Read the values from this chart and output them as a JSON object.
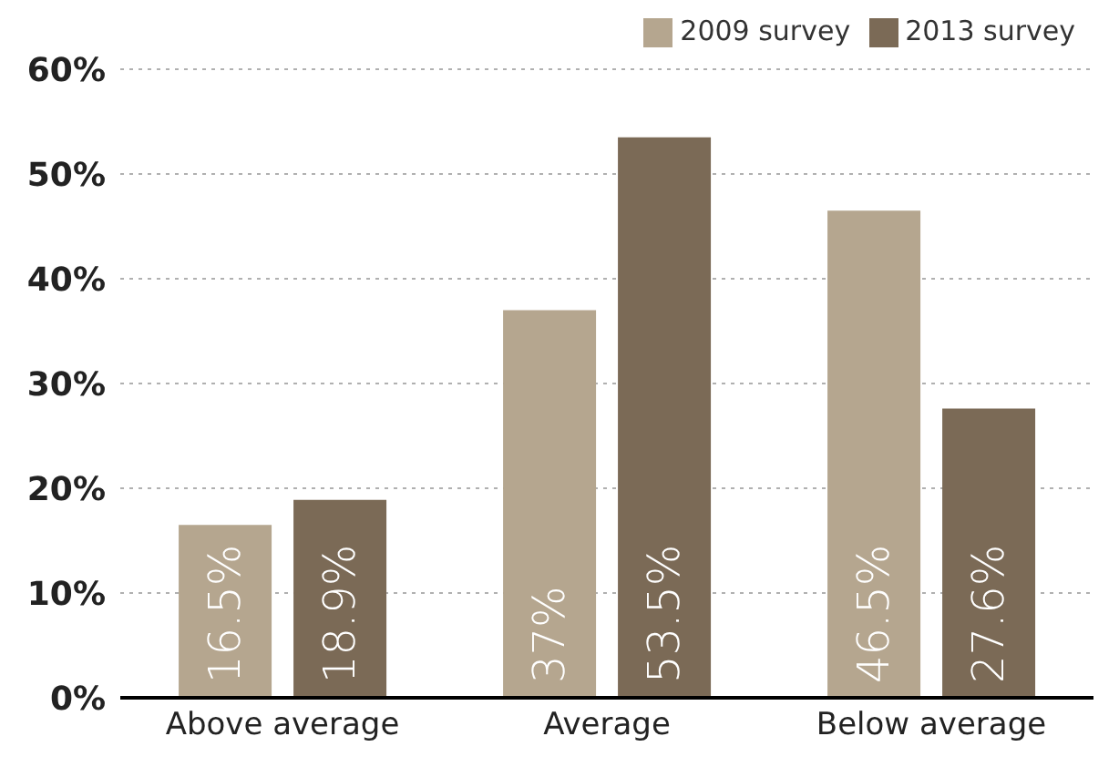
{
  "chart_data": {
    "type": "bar",
    "categories": [
      "Above average",
      "Average",
      "Below average"
    ],
    "series": [
      {
        "name": "2009 survey",
        "color": "#b5a68f",
        "values": [
          16.5,
          37,
          46.5
        ],
        "value_labels": [
          "16.5%",
          "37%",
          "46.5%"
        ]
      },
      {
        "name": "2013 survey",
        "color": "#7b6a56",
        "values": [
          18.9,
          53.5,
          27.6
        ],
        "value_labels": [
          "18.9%",
          "53.5%",
          "27.6%"
        ]
      }
    ],
    "ylim": [
      0,
      60
    ],
    "yticks": [
      {
        "value": 0,
        "label": "0%"
      },
      {
        "value": 10,
        "label": "10%"
      },
      {
        "value": 20,
        "label": "20%"
      },
      {
        "value": 30,
        "label": "30%"
      },
      {
        "value": 40,
        "label": "40%"
      },
      {
        "value": 50,
        "label": "50%"
      },
      {
        "value": 60,
        "label": "60%"
      }
    ],
    "grid": "y",
    "legend": "top right"
  }
}
